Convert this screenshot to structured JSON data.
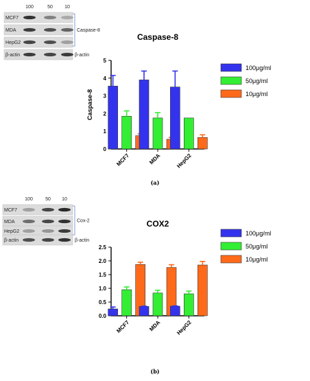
{
  "panels": [
    {
      "label": "(a)",
      "blot": {
        "concentrations": [
          "100",
          "50",
          "10"
        ],
        "rows": [
          "MCF7",
          "MDA",
          "HepG2"
        ],
        "bracket_label": "Caspase-8",
        "control_label": "β-actin"
      },
      "chart_data": {
        "type": "bar",
        "title": "Caspase-8",
        "ylabel": "Caspase-8",
        "xlabel": "",
        "categories": [
          "MCF7",
          "MDA",
          "HepG2"
        ],
        "ylim": [
          0,
          5
        ],
        "yticks": [
          0,
          1,
          2,
          3,
          4,
          5
        ],
        "grid": false,
        "legend_position": "right",
        "series": [
          {
            "name": "100μg/ml",
            "color": "#3333ee",
            "values": [
              3.55,
              3.9,
              3.5
            ],
            "errors": [
              0.6,
              0.5,
              0.9
            ]
          },
          {
            "name": "50μg/ml",
            "color": "#33ee33",
            "values": [
              1.85,
              1.75,
              1.75
            ],
            "errors": [
              0.3,
              0.3,
              0.0
            ]
          },
          {
            "name": "10μg/ml",
            "color": "#ff6a1a",
            "values": [
              0.75,
              0.55,
              0.65
            ],
            "errors": [
              0.1,
              0.1,
              0.15
            ]
          }
        ]
      }
    },
    {
      "label": "(b)",
      "blot": {
        "concentrations": [
          "100",
          "50",
          "10"
        ],
        "rows": [
          "MCF7",
          "MDA",
          "HepG2"
        ],
        "bracket_label": "Cox-2",
        "control_label": "β-actin"
      },
      "chart_data": {
        "type": "bar",
        "title": "COX2",
        "ylabel": "",
        "xlabel": "",
        "categories": [
          "MCF7",
          "MDA",
          "HepG2"
        ],
        "ylim": [
          0,
          2.5
        ],
        "yticks": [
          0.0,
          0.5,
          1.0,
          1.5,
          2.0,
          2.5
        ],
        "tick_format": 1,
        "grid": false,
        "legend_position": "right",
        "series": [
          {
            "name": "100μg/ml",
            "color": "#3333ee",
            "values": [
              0.25,
              0.34,
              0.35
            ],
            "errors": [
              0.07,
              0.01,
              0.01
            ]
          },
          {
            "name": "50μg/ml",
            "color": "#33ee33",
            "values": [
              0.95,
              0.83,
              0.8
            ],
            "errors": [
              0.1,
              0.1,
              0.1
            ]
          },
          {
            "name": "10μg/ml",
            "color": "#ff6a1a",
            "values": [
              1.87,
              1.76,
              1.85
            ],
            "errors": [
              0.08,
              0.1,
              0.13
            ]
          }
        ]
      }
    }
  ]
}
